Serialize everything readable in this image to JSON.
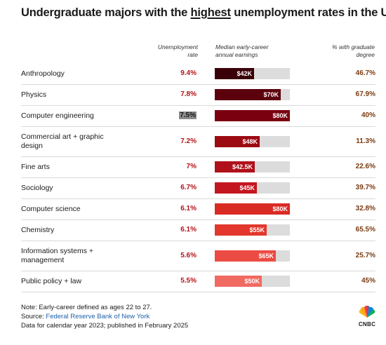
{
  "title": {
    "prefix": "Undergraduate majors with the ",
    "highlight": "highest",
    "suffix": " unemployment rates in the U.S."
  },
  "columns": {
    "unemployment": [
      "Unemployment",
      "rate"
    ],
    "earnings": [
      "Median early-career",
      "annual earnings"
    ],
    "graduate": [
      "% with graduate",
      "degree"
    ]
  },
  "colors": {
    "bar_shades": [
      "#3a0008",
      "#5c000d",
      "#7a0010",
      "#9c0a12",
      "#b0101a",
      "#c4161f",
      "#da2a24",
      "#e3362d",
      "#ec4b43",
      "#f06a62"
    ],
    "rate_color": "#b3121a",
    "grad_color": "#7a3a10",
    "bar_track": "#dcdcdc"
  },
  "chart_data": {
    "type": "table",
    "earnings_axis_max": 80,
    "rows": [
      {
        "major": [
          "Anthropology"
        ],
        "unemployment_rate": "9.4%",
        "earnings_label": "$42K",
        "earnings": 42,
        "grad_degree": "46.7%"
      },
      {
        "major": [
          "Physics"
        ],
        "unemployment_rate": "7.8%",
        "earnings_label": "$70K",
        "earnings": 70,
        "grad_degree": "67.9%"
      },
      {
        "major": [
          "Computer engineering"
        ],
        "unemployment_rate": "7.5%",
        "earnings_label": "$80K",
        "earnings": 80,
        "grad_degree": "40%",
        "highlight": true
      },
      {
        "major": [
          "Commercial art + graphic",
          "design"
        ],
        "unemployment_rate": "7.2%",
        "earnings_label": "$48K",
        "earnings": 48,
        "grad_degree": "11.3%"
      },
      {
        "major": [
          "Fine arts"
        ],
        "unemployment_rate": "7%",
        "earnings_label": "$42.5K",
        "earnings": 42.5,
        "grad_degree": "22.6%"
      },
      {
        "major": [
          "Sociology"
        ],
        "unemployment_rate": "6.7%",
        "earnings_label": "$45K",
        "earnings": 45,
        "grad_degree": "39.7%"
      },
      {
        "major": [
          "Computer science"
        ],
        "unemployment_rate": "6.1%",
        "earnings_label": "$80K",
        "earnings": 80,
        "grad_degree": "32.8%"
      },
      {
        "major": [
          "Chemistry"
        ],
        "unemployment_rate": "6.1%",
        "earnings_label": "$55K",
        "earnings": 55,
        "grad_degree": "65.5%"
      },
      {
        "major": [
          "Information systems +",
          "management"
        ],
        "unemployment_rate": "5.6%",
        "earnings_label": "$65K",
        "earnings": 65,
        "grad_degree": "25.7%"
      },
      {
        "major": [
          "Public policy + law"
        ],
        "unemployment_rate": "5.5%",
        "earnings_label": "$50K",
        "earnings": 50,
        "grad_degree": "45%"
      }
    ]
  },
  "notes": {
    "note": "Note: Early-career defined as ages 22 to 27.",
    "source_prefix": "Source: ",
    "source": "Federal Reserve Bank of New York",
    "data_line": "Data for calendar year 2023; published in February 2025"
  },
  "logo": {
    "text": "CNBC",
    "icon": "nbc-peacock-icon"
  }
}
